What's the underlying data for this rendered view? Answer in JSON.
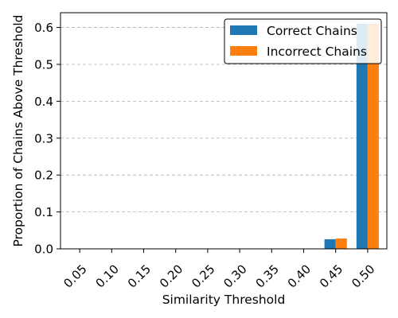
{
  "chart_data": {
    "type": "bar",
    "title": "",
    "xlabel": "Similarity Threshold",
    "ylabel": "Proportion of Chains Above Threshold",
    "categories": [
      "0.05",
      "0.10",
      "0.15",
      "0.20",
      "0.25",
      "0.30",
      "0.35",
      "0.40",
      "0.45",
      "0.50"
    ],
    "series": [
      {
        "name": "Correct Chains",
        "color": "#1f77b4",
        "values": [
          0,
          0,
          0,
          0,
          0,
          0,
          0,
          0,
          0.026,
          0.61
        ]
      },
      {
        "name": "Incorrect Chains",
        "color": "#ff7f0e",
        "values": [
          0,
          0,
          0,
          0,
          0,
          0,
          0,
          0,
          0.028,
          0.61
        ]
      }
    ],
    "ylim": [
      0,
      0.64
    ],
    "yticks": [
      "0.0",
      "0.1",
      "0.2",
      "0.3",
      "0.4",
      "0.5",
      "0.6"
    ],
    "grid": "y-dashed",
    "legend_position": "top-right"
  }
}
